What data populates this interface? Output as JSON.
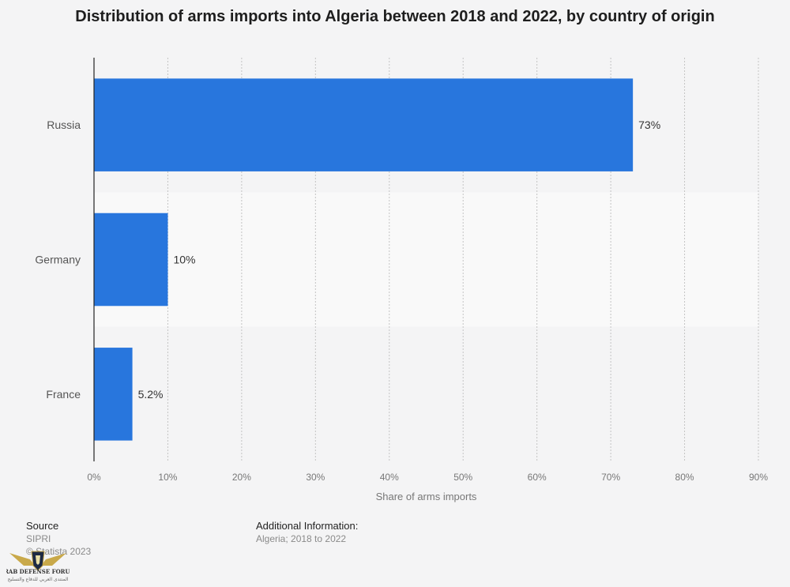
{
  "chart_data": {
    "type": "bar",
    "orientation": "horizontal",
    "title": "Distribution of arms imports into Algeria between 2018 and 2022, by country of origin",
    "categories": [
      "Russia",
      "Germany",
      "France"
    ],
    "values": [
      73,
      10,
      5.2
    ],
    "value_labels": [
      "73%",
      "10%",
      "5.2%"
    ],
    "xlabel": "Share of arms imports",
    "ylabel": "",
    "xlim": [
      0,
      90
    ],
    "x_ticks": [
      0,
      10,
      20,
      30,
      40,
      50,
      60,
      70,
      80,
      90
    ],
    "x_tick_labels": [
      "0%",
      "10%",
      "20%",
      "30%",
      "40%",
      "50%",
      "60%",
      "70%",
      "80%",
      "90%"
    ],
    "grid": true,
    "bar_color": "#2876dd"
  },
  "footer": {
    "source_heading": "Source",
    "source_lines": [
      "SIPRI",
      "© Statista 2023"
    ],
    "info_heading": "Additional Information:",
    "info_text": "Algeria; 2018 to 2022"
  },
  "logo": {
    "icon": "arab-defense-forum-eagle-logo",
    "text_main": "ARAB DEFENSE FORUM",
    "text_sub": "المنتدى العربي للدفاع والتسليح"
  }
}
